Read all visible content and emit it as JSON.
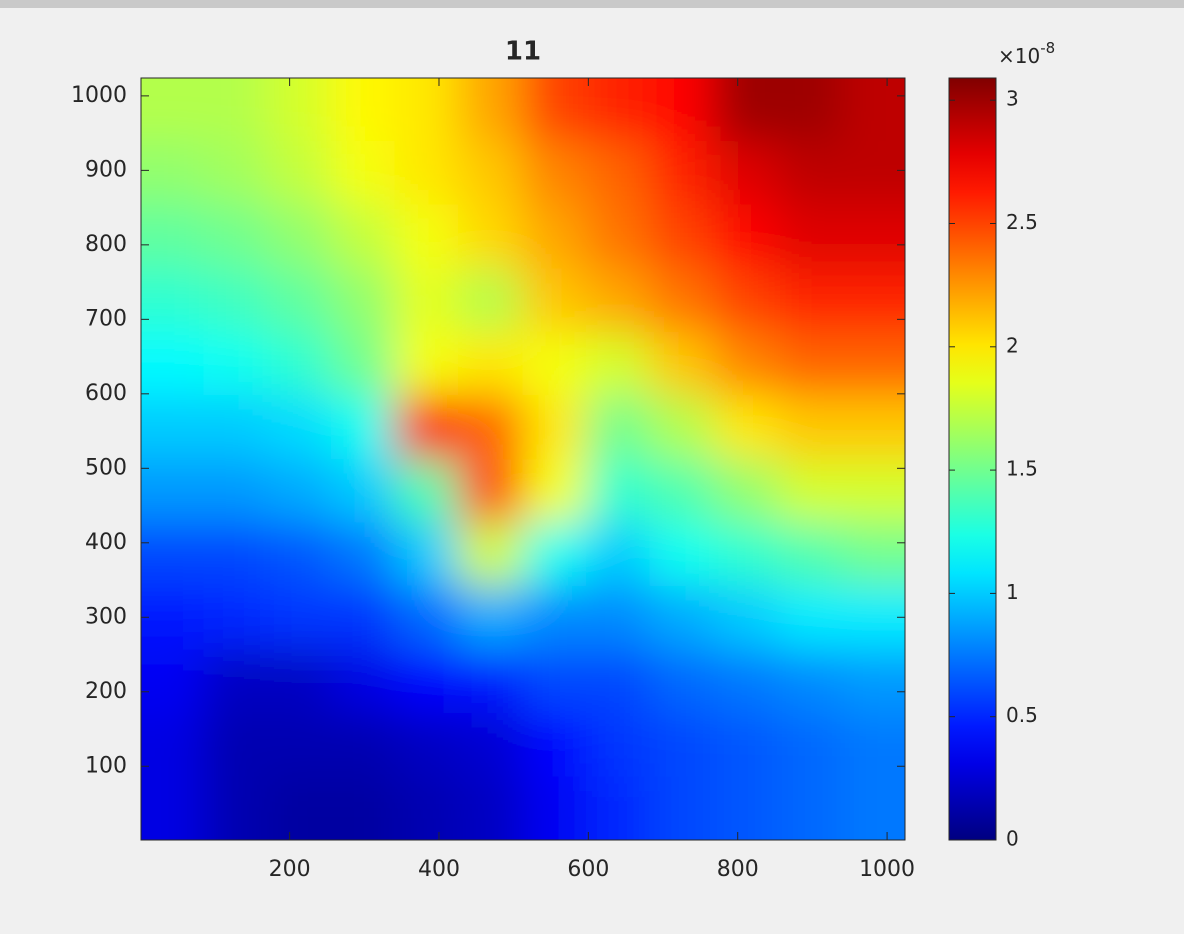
{
  "chart_data": {
    "type": "contourf",
    "title": "11",
    "colormap": "jet",
    "x": [
      43,
      128,
      213,
      299,
      384,
      469,
      555,
      640,
      725,
      811,
      896,
      981
    ],
    "y": [
      981,
      896,
      811,
      725,
      640,
      555,
      469,
      384,
      299,
      213,
      128,
      43
    ],
    "z": [
      [
        1.7,
        1.7,
        1.8,
        1.95,
        2.0,
        2.2,
        2.5,
        2.6,
        2.7,
        3.0,
        3.0,
        2.9
      ],
      [
        1.6,
        1.65,
        1.75,
        1.9,
        2.0,
        2.1,
        2.3,
        2.4,
        2.6,
        2.8,
        2.9,
        2.9
      ],
      [
        1.45,
        1.5,
        1.6,
        1.75,
        1.9,
        2.05,
        2.2,
        2.35,
        2.5,
        2.7,
        2.8,
        2.8
      ],
      [
        1.3,
        1.35,
        1.45,
        1.6,
        1.85,
        1.7,
        2.1,
        2.2,
        2.35,
        2.5,
        2.6,
        2.6
      ],
      [
        1.15,
        1.2,
        1.3,
        1.5,
        1.9,
        2.0,
        1.9,
        1.8,
        2.1,
        2.3,
        2.4,
        2.4
      ],
      [
        1.0,
        1.0,
        1.05,
        1.2,
        2.7,
        2.4,
        2.0,
        1.5,
        1.7,
        2.0,
        2.1,
        2.1
      ],
      [
        0.85,
        0.85,
        0.9,
        1.0,
        1.4,
        2.5,
        1.9,
        1.3,
        1.4,
        1.6,
        1.8,
        1.8
      ],
      [
        0.6,
        0.6,
        0.65,
        0.75,
        1.0,
        1.8,
        1.2,
        1.0,
        1.2,
        1.3,
        1.4,
        1.5
      ],
      [
        0.45,
        0.5,
        0.55,
        0.55,
        0.7,
        0.9,
        0.8,
        0.8,
        0.9,
        1.0,
        1.1,
        1.1
      ],
      [
        0.35,
        0.2,
        0.2,
        0.3,
        0.4,
        0.45,
        0.6,
        0.6,
        0.7,
        0.75,
        0.8,
        0.85
      ],
      [
        0.3,
        0.15,
        0.15,
        0.15,
        0.2,
        0.25,
        0.4,
        0.55,
        0.6,
        0.65,
        0.7,
        0.75
      ],
      [
        0.3,
        0.15,
        0.1,
        0.1,
        0.15,
        0.2,
        0.35,
        0.5,
        0.6,
        0.65,
        0.7,
        0.75
      ]
    ],
    "xlim": [
      1,
      1024
    ],
    "ylim": [
      1,
      1024
    ],
    "xticks": [
      200,
      400,
      600,
      800,
      1000
    ],
    "yticks": [
      100,
      200,
      300,
      400,
      500,
      600,
      700,
      800,
      900,
      1000
    ],
    "clim": [
      0,
      3.09
    ],
    "cticks": [
      0,
      0.5,
      1,
      1.5,
      2,
      2.5,
      3
    ],
    "colorbar_multiplier": "×10",
    "colorbar_exponent": "-8"
  }
}
